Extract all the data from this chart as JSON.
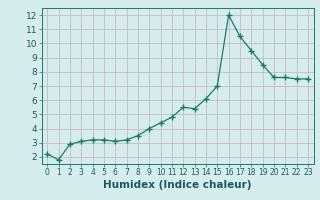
{
  "x": [
    0,
    1,
    2,
    3,
    4,
    5,
    6,
    7,
    8,
    9,
    10,
    11,
    12,
    13,
    14,
    15,
    16,
    17,
    18,
    19,
    20,
    21,
    22,
    23
  ],
  "y": [
    2.2,
    1.8,
    2.9,
    3.1,
    3.2,
    3.2,
    3.1,
    3.2,
    3.5,
    4.0,
    4.4,
    4.8,
    5.5,
    5.4,
    6.1,
    7.0,
    12.0,
    10.5,
    9.5,
    8.5,
    7.6,
    7.6,
    7.5,
    7.5
  ],
  "line_color": "#1a7a6a",
  "marker": "+",
  "marker_size": 4,
  "xlabel": "Humidex (Indice chaleur)",
  "xlim": [
    -0.5,
    23.5
  ],
  "ylim": [
    1.5,
    12.5
  ],
  "yticks": [
    2,
    3,
    4,
    5,
    6,
    7,
    8,
    9,
    10,
    11,
    12
  ],
  "xticks": [
    0,
    1,
    2,
    3,
    4,
    5,
    6,
    7,
    8,
    9,
    10,
    11,
    12,
    13,
    14,
    15,
    16,
    17,
    18,
    19,
    20,
    21,
    22,
    23
  ],
  "bg_color": "#d5eeed",
  "grid_color_h": "#c8b8c0",
  "grid_color_v": "#c8b8c0",
  "axes_bg": "#d5eeed",
  "tick_color": "#1a7a6a",
  "label_color": "#1a5a5a",
  "ytick_fontsize": 6.5,
  "xtick_fontsize": 5.5,
  "xlabel_fontsize": 7.5
}
